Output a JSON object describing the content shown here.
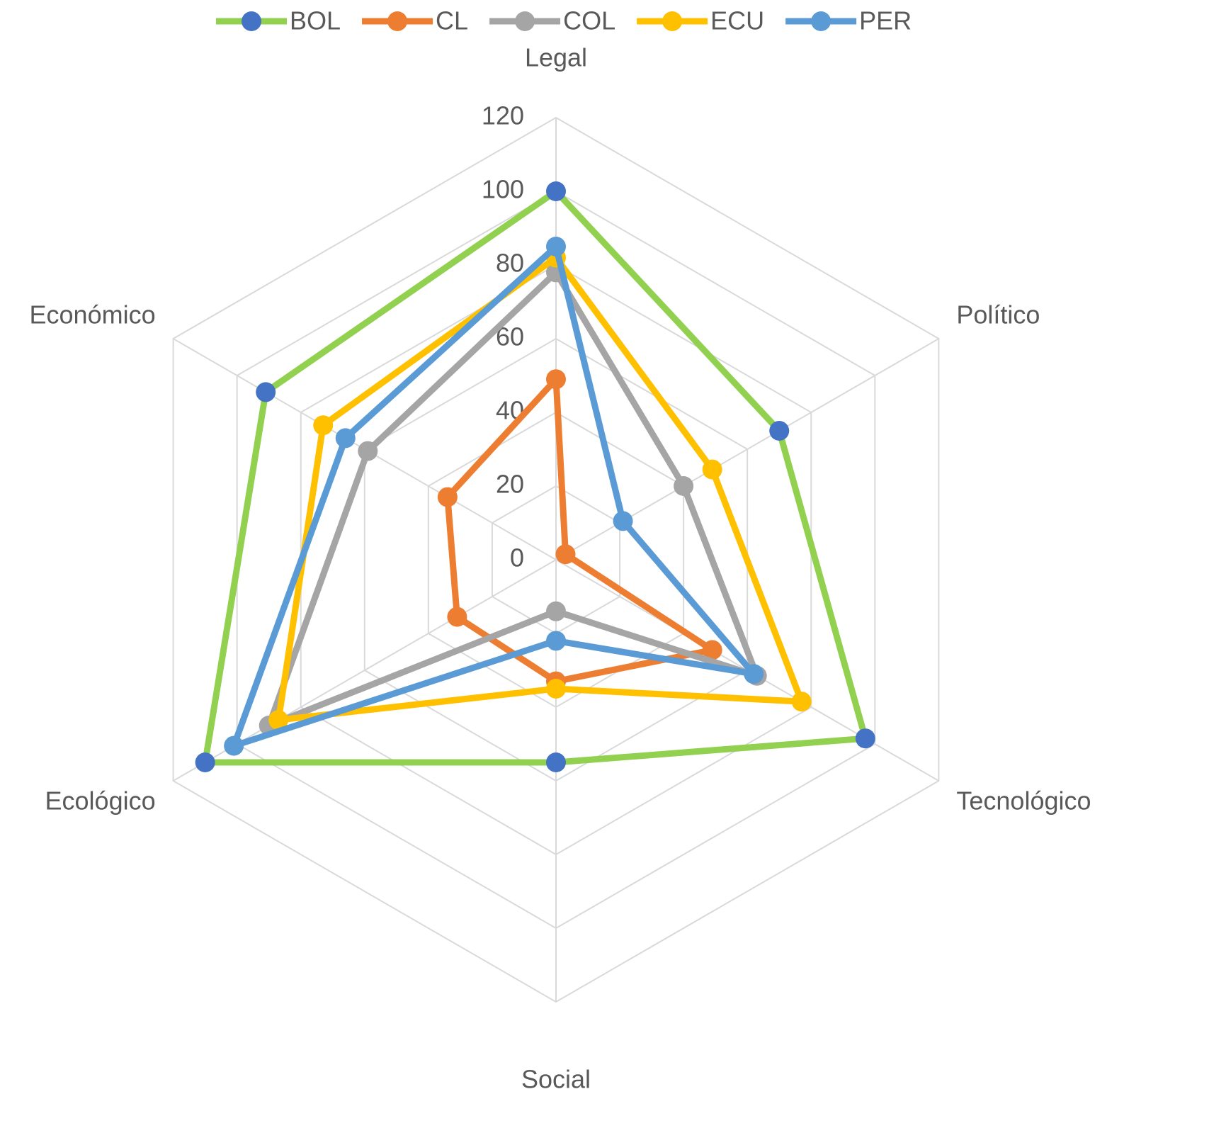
{
  "chart_data": {
    "type": "radar",
    "categories": [
      "Legal",
      "Político",
      "Tecnológico",
      "Social",
      "Ecológico",
      "Económico"
    ],
    "series": [
      {
        "name": "BOL",
        "color": "#92d050",
        "marker_color": "#4472c4",
        "values": [
          100,
          70,
          97,
          55,
          110,
          91
        ]
      },
      {
        "name": "CL",
        "color": "#ed7d31",
        "marker_color": "#ed7d31",
        "values": [
          49,
          3,
          49,
          33,
          31,
          34
        ]
      },
      {
        "name": "COL",
        "color": "#a5a5a5",
        "marker_color": "#a5a5a5",
        "values": [
          78,
          40,
          63,
          14,
          90,
          59
        ]
      },
      {
        "name": "ECU",
        "color": "#ffc000",
        "marker_color": "#ffc000",
        "values": [
          82,
          49,
          77,
          35,
          87,
          73
        ]
      },
      {
        "name": "PER",
        "color": "#5b9bd5",
        "marker_color": "#5b9bd5",
        "values": [
          85,
          21,
          62,
          22,
          101,
          66
        ]
      }
    ],
    "ylim": [
      0,
      120
    ],
    "yticks": [
      0,
      20,
      40,
      60,
      80,
      100,
      120
    ],
    "grid": true,
    "legend": "top"
  }
}
